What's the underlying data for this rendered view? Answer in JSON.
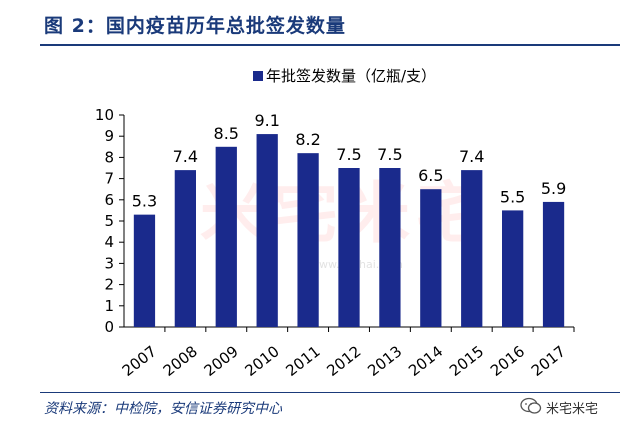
{
  "header": {
    "title": "图 2：国内疫苗历年总批签发数量"
  },
  "chart_data": {
    "type": "bar",
    "categories": [
      "2007",
      "2008",
      "2009",
      "2010",
      "2011",
      "2012",
      "2013",
      "2014",
      "2015",
      "2016",
      "2017"
    ],
    "series": [
      {
        "name": "年批签发数量（亿瓶/支）",
        "values": [
          5.3,
          7.4,
          8.5,
          9.1,
          8.2,
          7.5,
          7.5,
          6.5,
          7.4,
          5.5,
          5.9
        ]
      }
    ],
    "ylim": [
      0,
      10
    ],
    "yticks": [
      0,
      1,
      2,
      3,
      4,
      5,
      6,
      7,
      8,
      9,
      10
    ],
    "legend_position": "top-center",
    "bar_color": "#1a2a8c",
    "grid": false
  },
  "footer": {
    "source": "资料来源：中检院，安信证券研究中心",
    "watermark": "米宅米宅"
  },
  "background_watermark": {
    "text": "米宅米宅",
    "url": "www.mizhai.com"
  }
}
